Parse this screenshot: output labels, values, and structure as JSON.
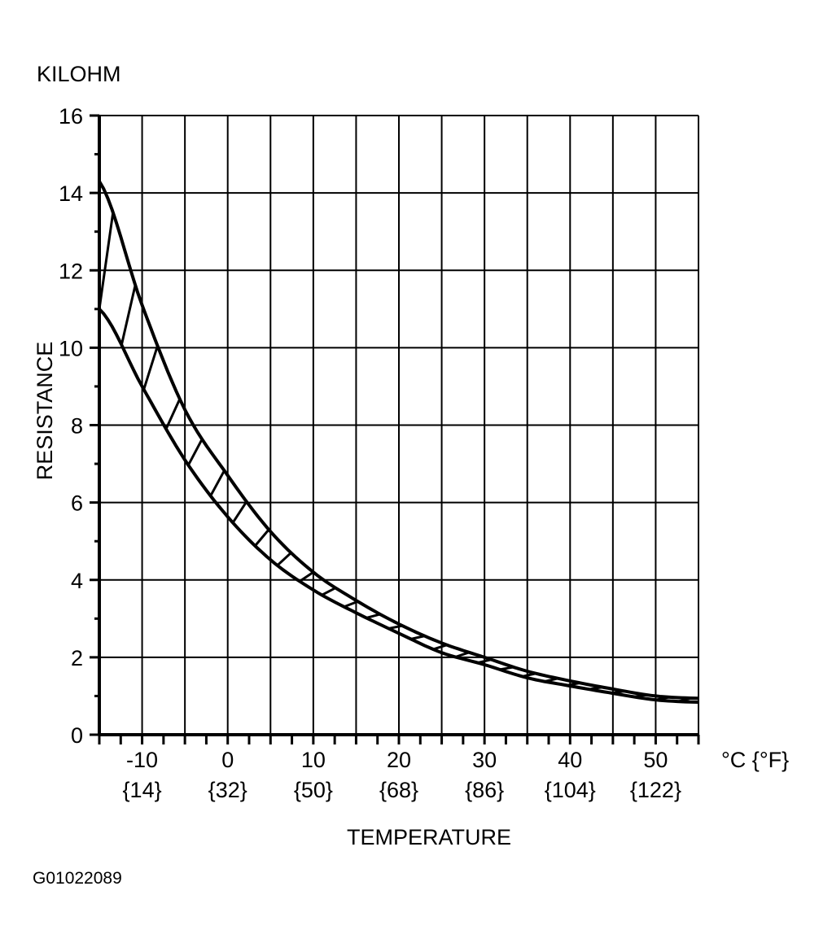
{
  "chart_data": {
    "type": "area",
    "ylabel": "RESISTANCE",
    "yunit": "KILOHM",
    "xlabel": "TEMPERATURE",
    "xunit": "°C {°F}",
    "figure_id": "G01022089",
    "xlim": [
      -15,
      55
    ],
    "ylim": [
      0,
      16
    ],
    "grid": true,
    "x_ticks": [
      -10,
      0,
      10,
      20,
      30,
      40,
      50
    ],
    "x_tick_labels": [
      "-10",
      "0",
      "10",
      "20",
      "30",
      "40",
      "50"
    ],
    "x_tick_labels_f": [
      "{14}",
      "{32}",
      "{50}",
      "{68}",
      "{86}",
      "{104}",
      "{122}"
    ],
    "y_ticks": [
      0,
      2,
      4,
      6,
      8,
      10,
      12,
      14,
      16
    ],
    "y_tick_labels": [
      "0",
      "2",
      "4",
      "6",
      "8",
      "10",
      "12",
      "14",
      "16"
    ],
    "series": [
      {
        "role": "upper bound",
        "x": [
          -15,
          -10,
          -5,
          0,
          5,
          10,
          15,
          20,
          25,
          30,
          35,
          40,
          45,
          50,
          55
        ],
        "y": [
          14.3,
          11.1,
          8.4,
          6.7,
          5.25,
          4.2,
          3.47,
          2.86,
          2.37,
          2.0,
          1.64,
          1.39,
          1.18,
          1.0,
          0.94
        ]
      },
      {
        "role": "lower bound",
        "x": [
          -15,
          -10,
          -5,
          0,
          5,
          10,
          15,
          20,
          25,
          30,
          35,
          40,
          45,
          50,
          55
        ],
        "y": [
          11.0,
          9.0,
          7.1,
          5.63,
          4.52,
          3.74,
          3.15,
          2.62,
          2.12,
          1.81,
          1.47,
          1.26,
          1.07,
          0.9,
          0.84
        ]
      }
    ],
    "band_fill": "hatched",
    "line_color": "#000000"
  }
}
